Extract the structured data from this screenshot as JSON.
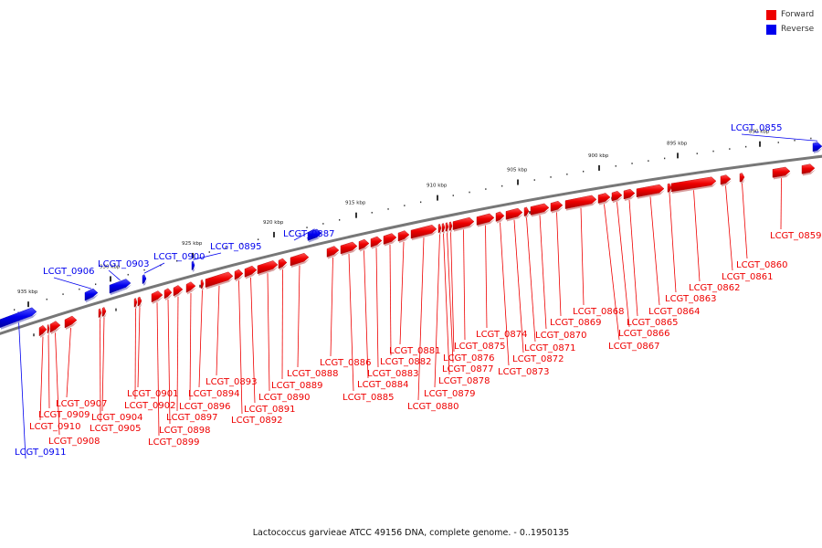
{
  "caption": "Lactococcus garvieae ATCC 49156 DNA, complete genome. - 0..1950135",
  "legend": [
    {
      "label": "Forward",
      "color": "#ee0000"
    },
    {
      "label": "Reverse",
      "color": "#0000ee"
    }
  ],
  "ticks": [
    "890 kbp",
    "895 kbp",
    "900 kbp",
    "905 kbp",
    "910 kbp",
    "915 kbp",
    "920 kbp",
    "925 kbp",
    "930 kbp",
    "935 kbp"
  ],
  "genes": [
    "LCGT_0855",
    "LCGT_0859",
    "LCGT_0860",
    "LCGT_0861",
    "LCGT_0862",
    "LCGT_0863",
    "LCGT_0864",
    "LCGT_0865",
    "LCGT_0866",
    "LCGT_0867",
    "LCGT_0868",
    "LCGT_0869",
    "LCGT_0870",
    "LCGT_0871",
    "LCGT_0872",
    "LCGT_0873",
    "LCGT_0874",
    "LCGT_0875",
    "LCGT_0876",
    "LCGT_0877",
    "LCGT_0878",
    "LCGT_0879",
    "LCGT_0880",
    "LCGT_0881",
    "LCGT_0882",
    "LCGT_0883",
    "LCGT_0884",
    "LCGT_0885",
    "LCGT_0886",
    "LCGT_0887",
    "LCGT_0888",
    "LCGT_0889",
    "LCGT_0890",
    "LCGT_0891",
    "LCGT_0892",
    "LCGT_0893",
    "LCGT_0894",
    "LCGT_0895",
    "LCGT_0896",
    "LCGT_0897",
    "LCGT_0898",
    "LCGT_0899",
    "LCGT_0900",
    "LCGT_0901",
    "LCGT_0902",
    "LCGT_0903",
    "LCGT_0904",
    "LCGT_0905",
    "LCGT_0906",
    "LCGT_0907",
    "LCGT_0908",
    "LCGT_0909",
    "LCGT_0910",
    "LCGT_0911"
  ]
}
